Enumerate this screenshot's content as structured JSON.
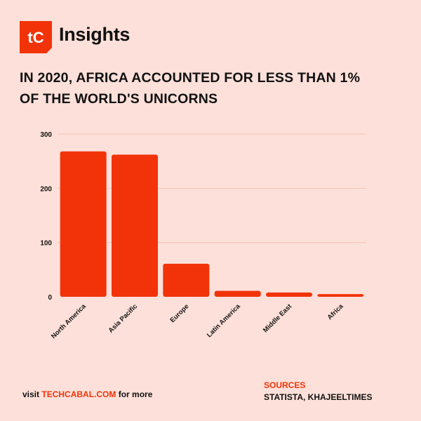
{
  "brand": {
    "logo_text": "tC",
    "name": "Insights",
    "accent_color": "#f2330a"
  },
  "headline": {
    "line1": "IN 2020, AFRICA ACCOUNTED FOR LESS THAN 1%",
    "line2": "OF THE WORLD'S UNICORNS"
  },
  "chart_data": {
    "type": "bar",
    "categories": [
      "North America",
      "Asia Pacific",
      "Europe",
      "Latin America",
      "Middle East",
      "Africa"
    ],
    "values": [
      268,
      262,
      61,
      11,
      8,
      5
    ],
    "ylim": [
      0,
      300
    ],
    "yticks": [
      0,
      100,
      200,
      300
    ],
    "grid": true,
    "bar_color": "#f2330a"
  },
  "footer": {
    "prefix": "visit ",
    "link": "TECHCABAL.COM",
    "suffix": " for more",
    "sources_title": "SOURCES",
    "sources_value": "STATISTA, KHAJEELTIMES"
  }
}
